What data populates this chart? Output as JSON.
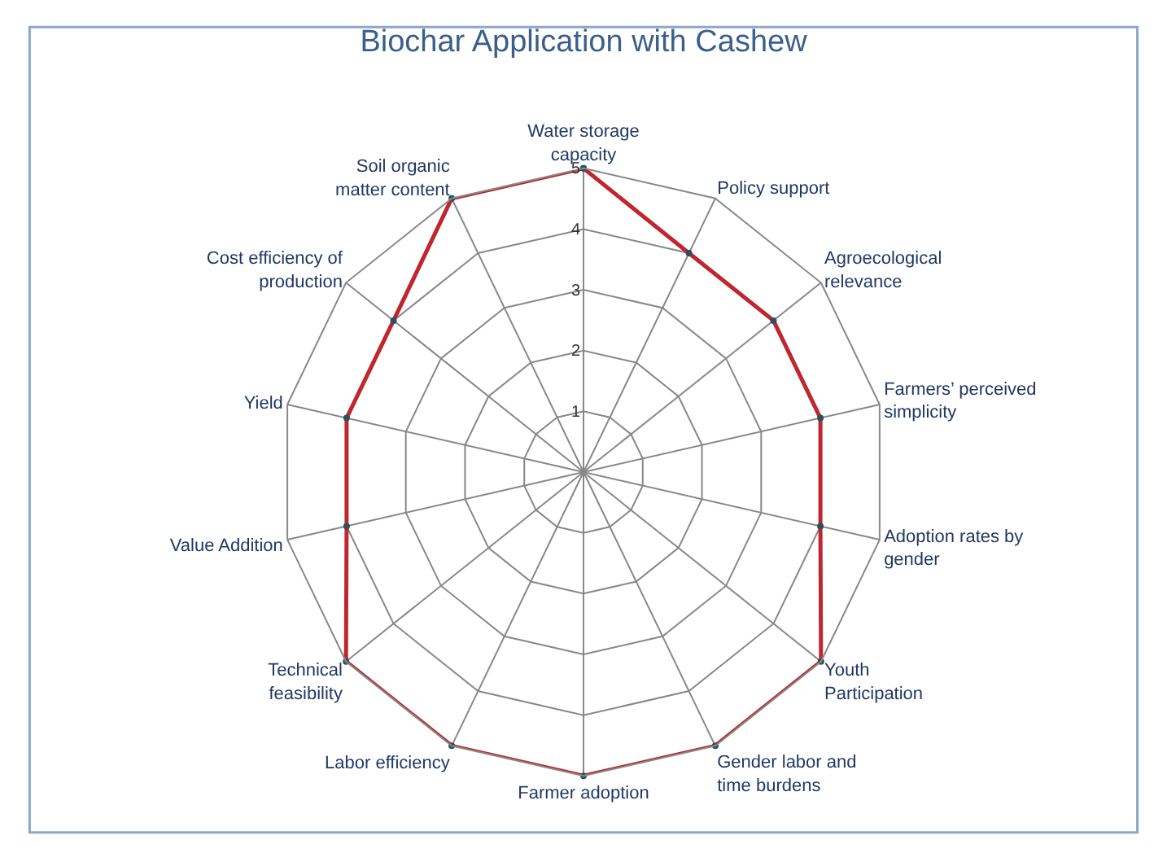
{
  "chart_data": {
    "type": "radar",
    "title": "Biochar Application with Cashew",
    "categories": [
      "Water storage capacity",
      "Policy support",
      "Agroecological relevance",
      "Farmers’ perceived simplicity",
      "Adoption rates by gender",
      "Youth Participation",
      "Gender labor and time burdens",
      "Farmer adoption",
      "Labor efficiency",
      "Technical feasibility",
      "Value Addition",
      "Yield",
      "Cost efficiency of production",
      "Soil organic matter content"
    ],
    "series": [
      {
        "color": "#c0262d",
        "values": [
          5,
          4,
          4,
          4,
          4,
          5,
          5,
          5,
          5,
          5,
          4,
          4,
          4,
          5
        ]
      }
    ],
    "ylim": [
      0,
      5
    ],
    "yticks": [
      1,
      2,
      3,
      4,
      5
    ],
    "grid": true,
    "marker": "circle"
  }
}
